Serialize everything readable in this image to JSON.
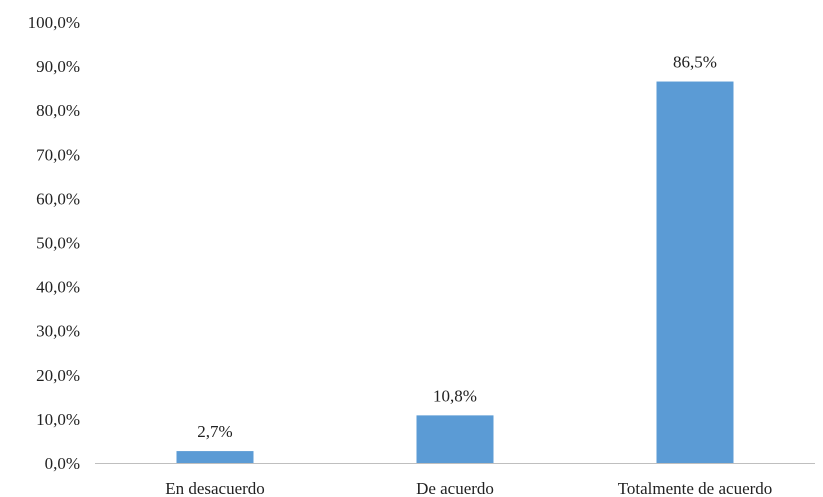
{
  "chart_data": {
    "type": "bar",
    "title": "",
    "xlabel": "",
    "ylabel": "",
    "categories": [
      "En desacuerdo",
      "De acuerdo",
      "Totalmente de acuerdo"
    ],
    "values": [
      2.7,
      10.8,
      86.5
    ],
    "data_labels": [
      "2,7%",
      "10,8%",
      "86,5%"
    ],
    "ylim": [
      0,
      100
    ],
    "yticks": [
      0,
      10,
      20,
      30,
      40,
      50,
      60,
      70,
      80,
      90,
      100
    ],
    "ytick_labels": [
      "0,0%",
      "10,0%",
      "20,0%",
      "30,0%",
      "40,0%",
      "50,0%",
      "60,0%",
      "70,0%",
      "80,0%",
      "90,0%",
      "100,0%"
    ],
    "grid": false,
    "legend": "none",
    "bar_color": "#5b9bd5",
    "axis_color": "#bfbfbf"
  }
}
